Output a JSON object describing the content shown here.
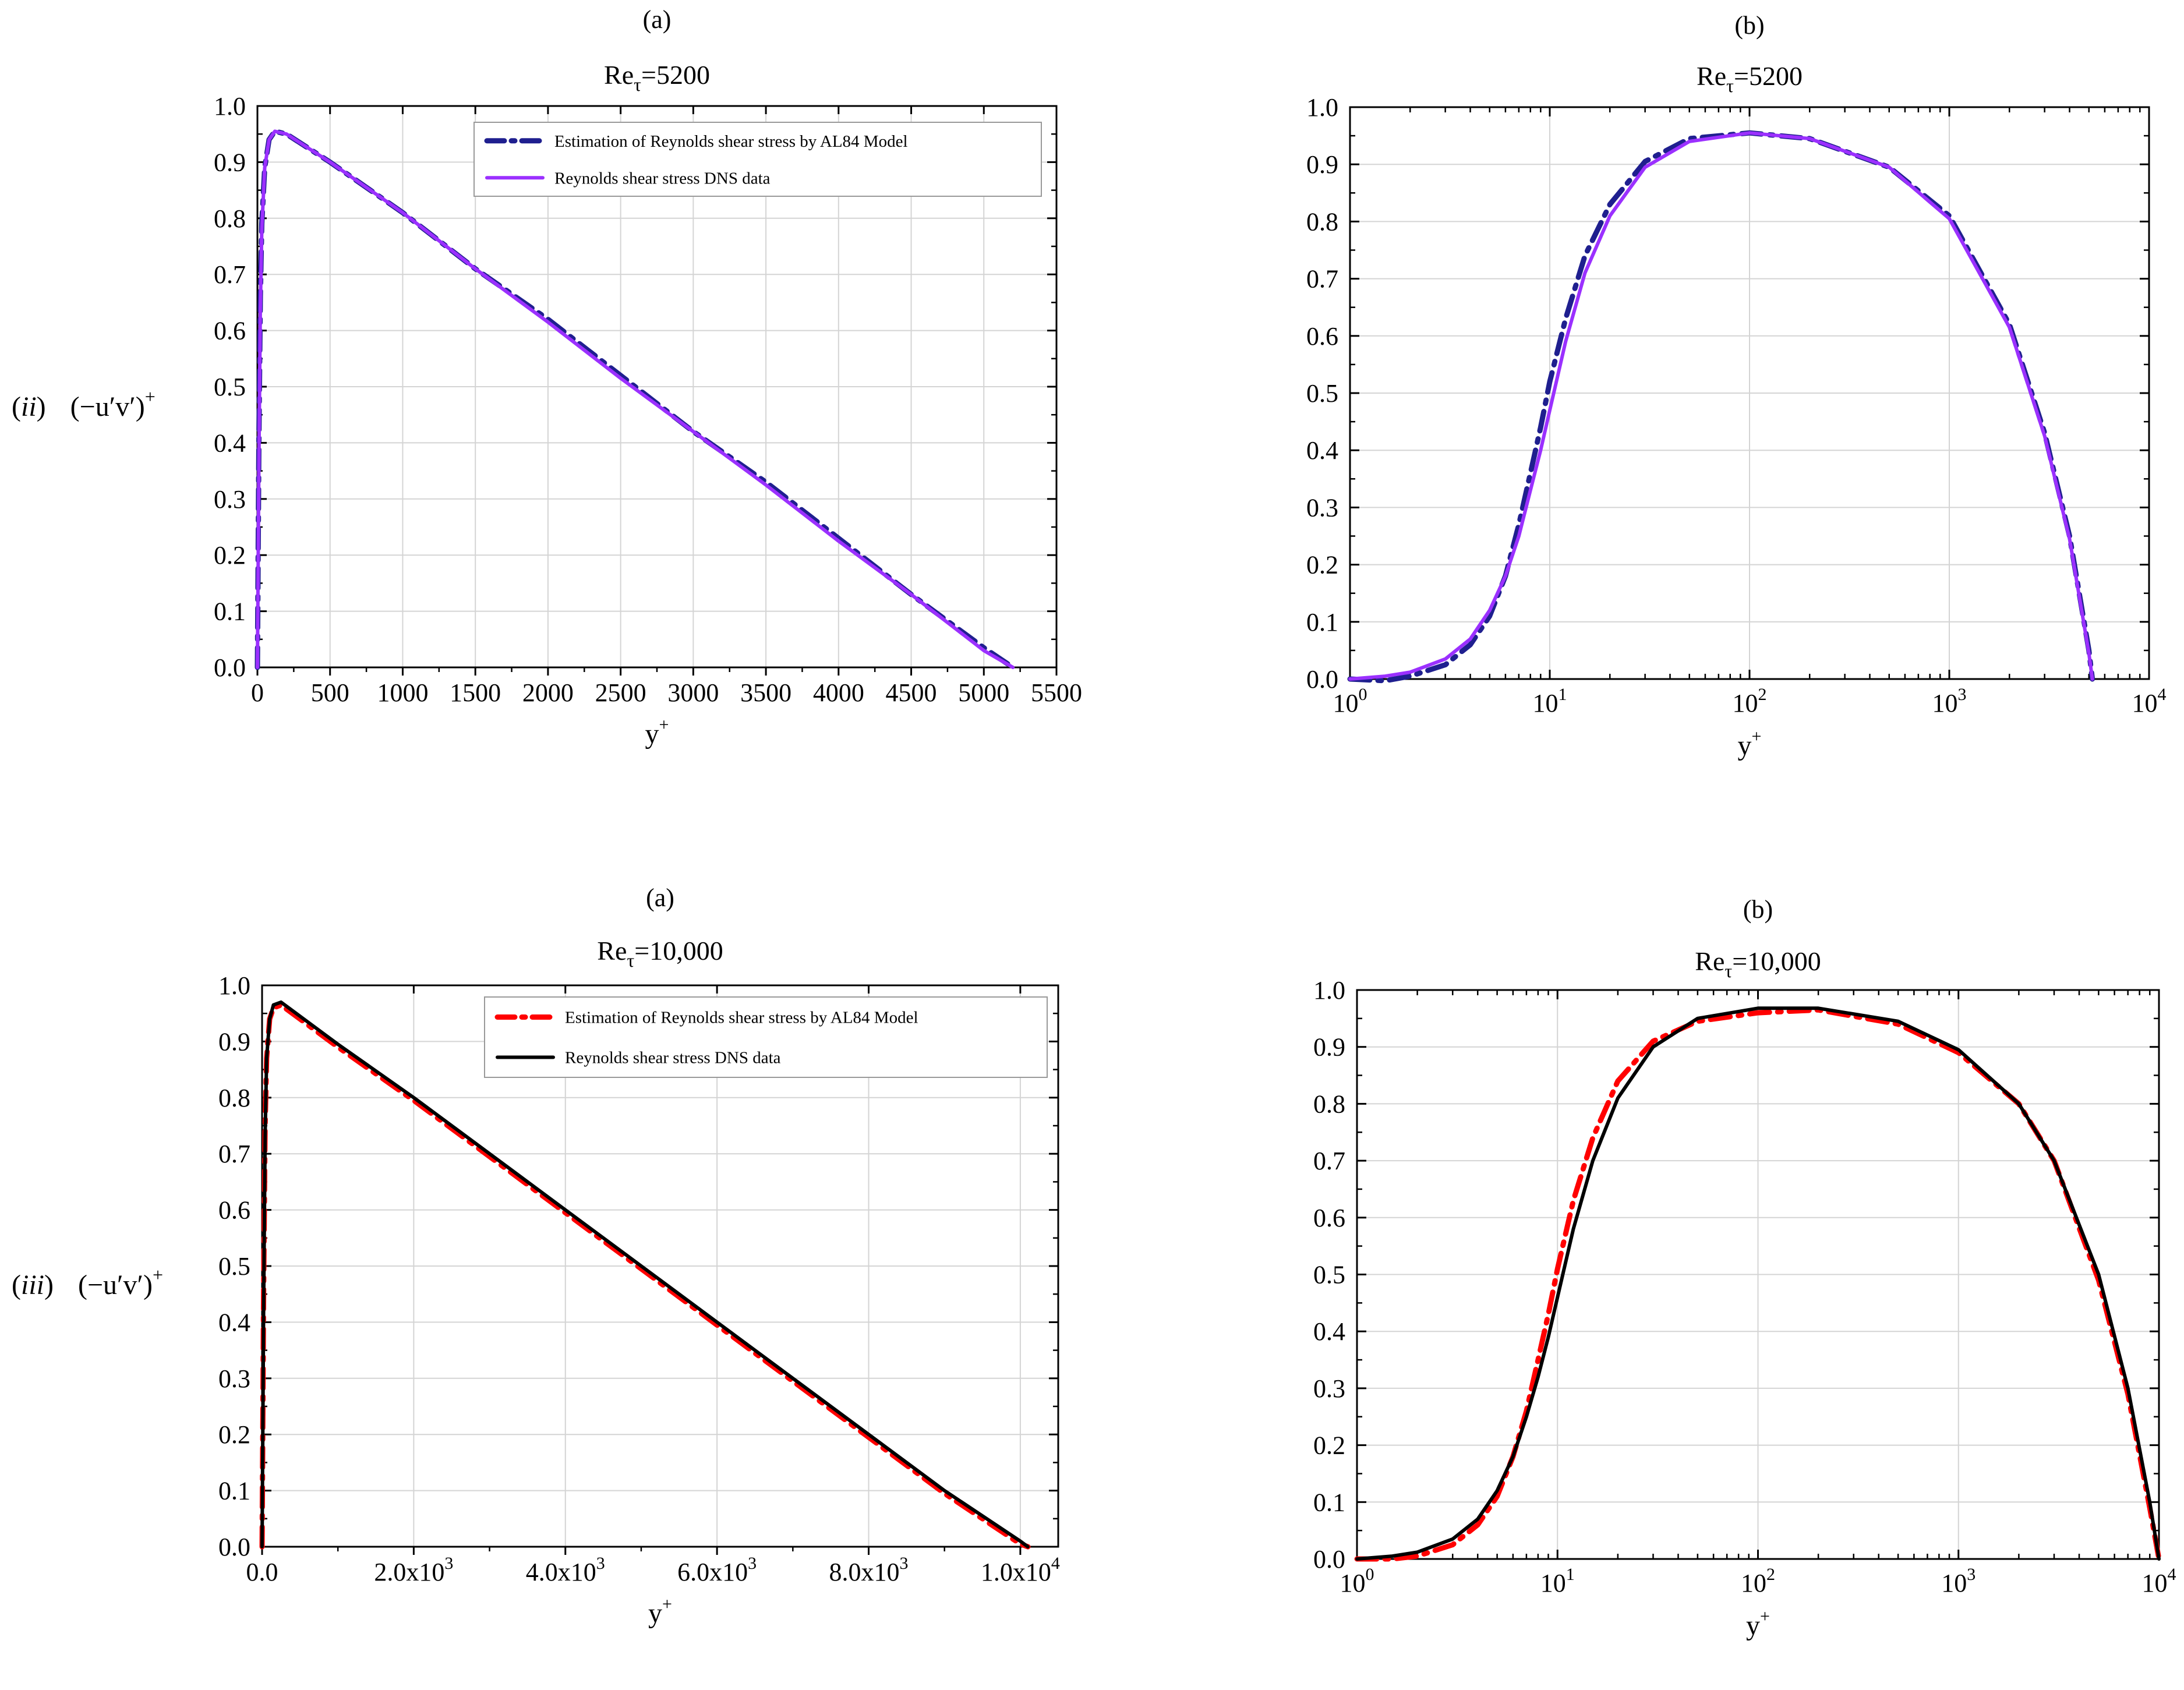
{
  "figure": {
    "row_labels": [
      {
        "roman": "ii",
        "quantity": "(−u′v′)",
        "superscript": "+"
      },
      {
        "roman": "iii",
        "quantity": "(−u′v′)",
        "superscript": "+"
      }
    ]
  },
  "colors": {
    "model_5200": "#1f1f8f",
    "dns_5200": "#9b30ff",
    "model_10000": "#ff0000",
    "dns_10000": "#000000"
  },
  "chart_data": [
    {
      "id": "top-linear",
      "type": "line",
      "panel_letter": "(a)",
      "title_base": "Re",
      "title_sub": "τ",
      "title_rest": "=5200",
      "xlabel": "y",
      "xlabel_sup": "+",
      "xscale": "linear",
      "xlim": [
        0,
        5500
      ],
      "ylim": [
        0,
        1.0
      ],
      "xticks": [
        0,
        500,
        1000,
        1500,
        2000,
        2500,
        3000,
        3500,
        4000,
        4500,
        5000,
        5500
      ],
      "xtick_labels": [
        "0",
        "500",
        "1000",
        "1500",
        "2000",
        "2500",
        "3000",
        "3500",
        "4000",
        "4500",
        "5000",
        "5500"
      ],
      "yticks": [
        0,
        0.1,
        0.2,
        0.3,
        0.4,
        0.5,
        0.6,
        0.7,
        0.8,
        0.9,
        1.0
      ],
      "ytick_labels": [
        "0.0",
        "0.1",
        "0.2",
        "0.3",
        "0.4",
        "0.5",
        "0.6",
        "0.7",
        "0.8",
        "0.9",
        "1.0"
      ],
      "legend_position": "top-right",
      "series": [
        {
          "name": "Estimation of Reynolds shear stress by AL84 Model",
          "style": "dashdot",
          "color_key": "model_5200",
          "x": [
            0,
            10,
            20,
            30,
            50,
            80,
            120,
            200,
            500,
            1000,
            1500,
            2000,
            2500,
            3000,
            3500,
            4000,
            4500,
            5000,
            5200
          ],
          "y": [
            0,
            0.4,
            0.66,
            0.79,
            0.89,
            0.94,
            0.955,
            0.95,
            0.9,
            0.81,
            0.71,
            0.62,
            0.52,
            0.42,
            0.33,
            0.23,
            0.13,
            0.035,
            0.0
          ]
        },
        {
          "name": "Reynolds shear stress DNS data",
          "style": "solid",
          "color_key": "dns_5200",
          "x": [
            0,
            10,
            20,
            30,
            50,
            80,
            120,
            200,
            500,
            1000,
            1500,
            2000,
            2500,
            3000,
            3500,
            4000,
            4500,
            5000,
            5200
          ],
          "y": [
            0,
            0.36,
            0.64,
            0.78,
            0.89,
            0.94,
            0.955,
            0.95,
            0.9,
            0.81,
            0.71,
            0.615,
            0.515,
            0.42,
            0.325,
            0.225,
            0.13,
            0.03,
            0.0
          ]
        }
      ]
    },
    {
      "id": "top-log",
      "type": "line",
      "panel_letter": "(b)",
      "title_base": "Re",
      "title_sub": "τ",
      "title_rest": "=5200",
      "xlabel": "y",
      "xlabel_sup": "+",
      "xscale": "log",
      "xlim": [
        1,
        10000
      ],
      "ylim": [
        0,
        1.0
      ],
      "xtick_exponents": [
        0,
        1,
        2,
        3,
        4
      ],
      "xtick_base": "10",
      "yticks": [
        0,
        0.1,
        0.2,
        0.3,
        0.4,
        0.5,
        0.6,
        0.7,
        0.8,
        0.9,
        1.0
      ],
      "ytick_labels": [
        "0.0",
        "0.1",
        "0.2",
        "0.3",
        "0.4",
        "0.5",
        "0.6",
        "0.7",
        "0.8",
        "0.9",
        "1.0"
      ],
      "series": [
        {
          "name": "Estimation of Reynolds shear stress by AL84 Model",
          "style": "dashdot",
          "color_key": "model_5200",
          "x": [
            1,
            1.5,
            2,
            3,
            4,
            5,
            6,
            7,
            8,
            9,
            10,
            12,
            15,
            20,
            30,
            50,
            100,
            200,
            500,
            1000,
            2000,
            3000,
            4000,
            5000,
            5200
          ],
          "y": [
            0,
            -0.003,
            0.005,
            0.025,
            0.06,
            0.11,
            0.18,
            0.27,
            0.36,
            0.44,
            0.52,
            0.63,
            0.74,
            0.83,
            0.905,
            0.945,
            0.955,
            0.945,
            0.895,
            0.81,
            0.62,
            0.43,
            0.25,
            0.05,
            0.0
          ]
        },
        {
          "name": "Reynolds shear stress DNS data",
          "style": "solid",
          "color_key": "dns_5200",
          "x": [
            1,
            1.5,
            2,
            3,
            4,
            5,
            6,
            7,
            8,
            9,
            10,
            12,
            15,
            20,
            30,
            50,
            100,
            200,
            500,
            1000,
            2000,
            3000,
            4000,
            5000,
            5200
          ],
          "y": [
            0,
            0.005,
            0.012,
            0.035,
            0.07,
            0.12,
            0.18,
            0.25,
            0.33,
            0.4,
            0.47,
            0.59,
            0.71,
            0.81,
            0.895,
            0.94,
            0.955,
            0.945,
            0.895,
            0.805,
            0.615,
            0.425,
            0.245,
            0.045,
            0.0
          ]
        }
      ]
    },
    {
      "id": "bottom-linear",
      "type": "line",
      "panel_letter": "(a)",
      "title_base": "Re",
      "title_sub": "τ",
      "title_rest": "=10,000",
      "xlabel": "y",
      "xlabel_sup": "+",
      "xscale": "linear",
      "xlim": [
        0,
        10500
      ],
      "ylim": [
        0,
        1.0
      ],
      "xticks": [
        0,
        2000,
        4000,
        6000,
        8000,
        10000
      ],
      "xtick_labels": [
        "0.0",
        "2.0x10",
        "4.0x10",
        "6.0x10",
        "8.0x10",
        "1.0x10"
      ],
      "xtick_sups": [
        "",
        "3",
        "3",
        "3",
        "3",
        "4"
      ],
      "yticks": [
        0,
        0.1,
        0.2,
        0.3,
        0.4,
        0.5,
        0.6,
        0.7,
        0.8,
        0.9,
        1.0
      ],
      "ytick_labels": [
        "0.0",
        "0.1",
        "0.2",
        "0.3",
        "0.4",
        "0.5",
        "0.6",
        "0.7",
        "0.8",
        "0.9",
        "1.0"
      ],
      "legend_position": "top-right",
      "series": [
        {
          "name": "Estimation of Reynolds shear stress by AL84 Model",
          "style": "dashdot",
          "color_key": "model_10000",
          "x": [
            0,
            20,
            40,
            60,
            100,
            150,
            250,
            500,
            1000,
            2000,
            3000,
            4000,
            5000,
            6000,
            7000,
            8000,
            9000,
            10000,
            10100
          ],
          "y": [
            0,
            0.45,
            0.75,
            0.87,
            0.94,
            0.96,
            0.965,
            0.94,
            0.89,
            0.795,
            0.695,
            0.595,
            0.495,
            0.395,
            0.295,
            0.195,
            0.095,
            0.005,
            0.0
          ]
        },
        {
          "name": "Reynolds shear stress DNS data",
          "style": "solid",
          "color_key": "dns_10000",
          "x": [
            0,
            20,
            40,
            60,
            100,
            150,
            250,
            500,
            1000,
            2000,
            3000,
            4000,
            5000,
            6000,
            7000,
            8000,
            9000,
            10000,
            10100
          ],
          "y": [
            0,
            0.42,
            0.73,
            0.87,
            0.94,
            0.965,
            0.97,
            0.945,
            0.895,
            0.8,
            0.7,
            0.6,
            0.5,
            0.4,
            0.3,
            0.2,
            0.1,
            0.01,
            0.0
          ]
        }
      ]
    },
    {
      "id": "bottom-log",
      "type": "line",
      "panel_letter": "(b)",
      "title_base": "Re",
      "title_sub": "τ",
      "title_rest": "=10,000",
      "xlabel": "y",
      "xlabel_sup": "+",
      "xscale": "log",
      "xlim": [
        1,
        10000
      ],
      "ylim": [
        0,
        1.0
      ],
      "xtick_exponents": [
        0,
        1,
        2,
        3,
        4
      ],
      "xtick_base": "10",
      "yticks": [
        0,
        0.1,
        0.2,
        0.3,
        0.4,
        0.5,
        0.6,
        0.7,
        0.8,
        0.9,
        1.0
      ],
      "ytick_labels": [
        "0.0",
        "0.1",
        "0.2",
        "0.3",
        "0.4",
        "0.5",
        "0.6",
        "0.7",
        "0.8",
        "0.9",
        "1.0"
      ],
      "series": [
        {
          "name": "Estimation of Reynolds shear stress by AL84 Model",
          "style": "dashdot",
          "color_key": "model_10000",
          "x": [
            1,
            1.5,
            2,
            3,
            4,
            5,
            6,
            7,
            8,
            9,
            10,
            12,
            15,
            20,
            30,
            50,
            100,
            200,
            500,
            1000,
            2000,
            3000,
            5000,
            7000,
            9000,
            10000
          ],
          "y": [
            0,
            0.0,
            0.005,
            0.025,
            0.06,
            0.11,
            0.18,
            0.26,
            0.35,
            0.43,
            0.51,
            0.63,
            0.74,
            0.84,
            0.91,
            0.945,
            0.96,
            0.965,
            0.94,
            0.89,
            0.8,
            0.7,
            0.49,
            0.29,
            0.09,
            0.0
          ]
        },
        {
          "name": "Reynolds shear stress DNS data",
          "style": "solid",
          "color_key": "dns_10000",
          "x": [
            1,
            1.5,
            2,
            3,
            4,
            5,
            6,
            7,
            8,
            9,
            10,
            12,
            15,
            20,
            30,
            50,
            100,
            200,
            500,
            1000,
            2000,
            3000,
            5000,
            7000,
            9000,
            10000
          ],
          "y": [
            0,
            0.005,
            0.012,
            0.035,
            0.07,
            0.12,
            0.18,
            0.25,
            0.32,
            0.39,
            0.46,
            0.58,
            0.7,
            0.81,
            0.9,
            0.95,
            0.968,
            0.968,
            0.945,
            0.895,
            0.8,
            0.7,
            0.5,
            0.3,
            0.1,
            0.0
          ]
        }
      ]
    }
  ]
}
